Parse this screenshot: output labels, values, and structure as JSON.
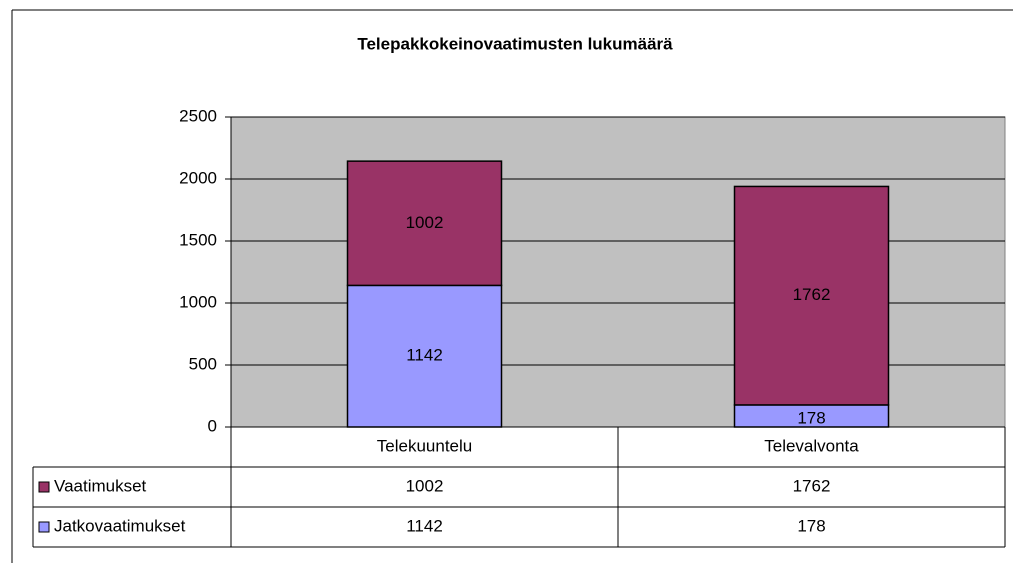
{
  "chart_data": {
    "type": "stacked_bar",
    "title": "Telepakkokeinovaatimusten lukumäärä",
    "categories": [
      "Telekuuntelu",
      "Televalvonta"
    ],
    "series": [
      {
        "name": "Jatkovaatimukset",
        "color": "#9999ff",
        "values": [
          1142,
          178
        ]
      },
      {
        "name": "Vaatimukset",
        "color": "#993366",
        "values": [
          1002,
          1762
        ]
      }
    ],
    "ylim": [
      0,
      2500
    ],
    "yticks": [
      0,
      500,
      1000,
      1500,
      2000,
      2500
    ],
    "grid": true,
    "plot_background": "#c0c0c0",
    "legend": "data-table"
  }
}
